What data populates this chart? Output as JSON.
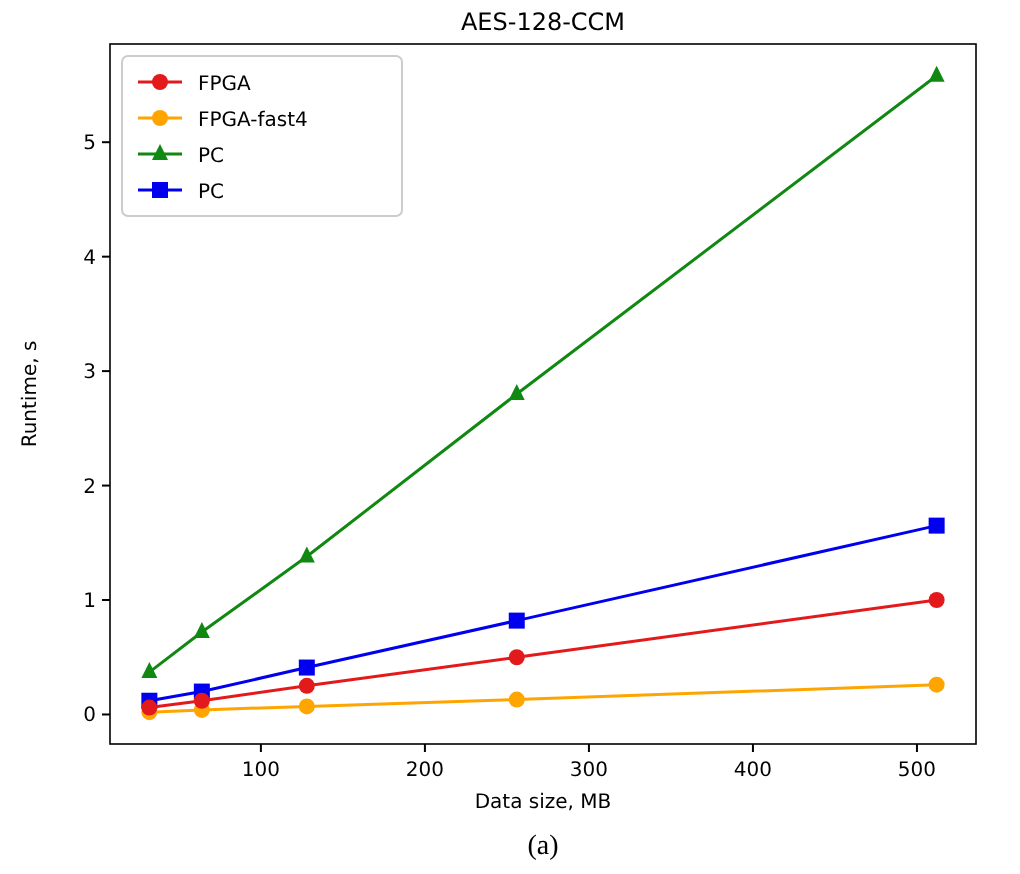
{
  "chart_data": {
    "type": "line",
    "title": "AES-128-CCM",
    "xlabel": "Data size, MB",
    "ylabel": "Runtime, s",
    "annotations": [
      "(a)"
    ],
    "x": [
      32,
      64,
      128,
      256,
      512
    ],
    "series": [
      {
        "name": "FPGA",
        "color": "#e31a1c",
        "marker": "circle",
        "values": [
          0.06,
          0.12,
          0.25,
          0.5,
          1.0
        ]
      },
      {
        "name": "FPGA-fast4",
        "color": "#ffa500",
        "marker": "circle",
        "values": [
          0.02,
          0.04,
          0.07,
          0.13,
          0.26
        ]
      },
      {
        "name": "PC",
        "color": "#118811",
        "marker": "triangle",
        "values": [
          0.37,
          0.72,
          1.38,
          2.8,
          5.58
        ]
      },
      {
        "name": "PC",
        "color": "#0000ee",
        "marker": "square",
        "values": [
          0.12,
          0.2,
          0.41,
          0.82,
          1.65
        ]
      }
    ],
    "xlim": [
      8,
      536
    ],
    "ylim": [
      -0.258,
      5.858
    ],
    "xticks": [
      100,
      200,
      300,
      400,
      500
    ],
    "yticks": [
      0,
      1,
      2,
      3,
      4,
      5
    ],
    "grid": false,
    "legend": "top left",
    "line_style": "solid"
  }
}
